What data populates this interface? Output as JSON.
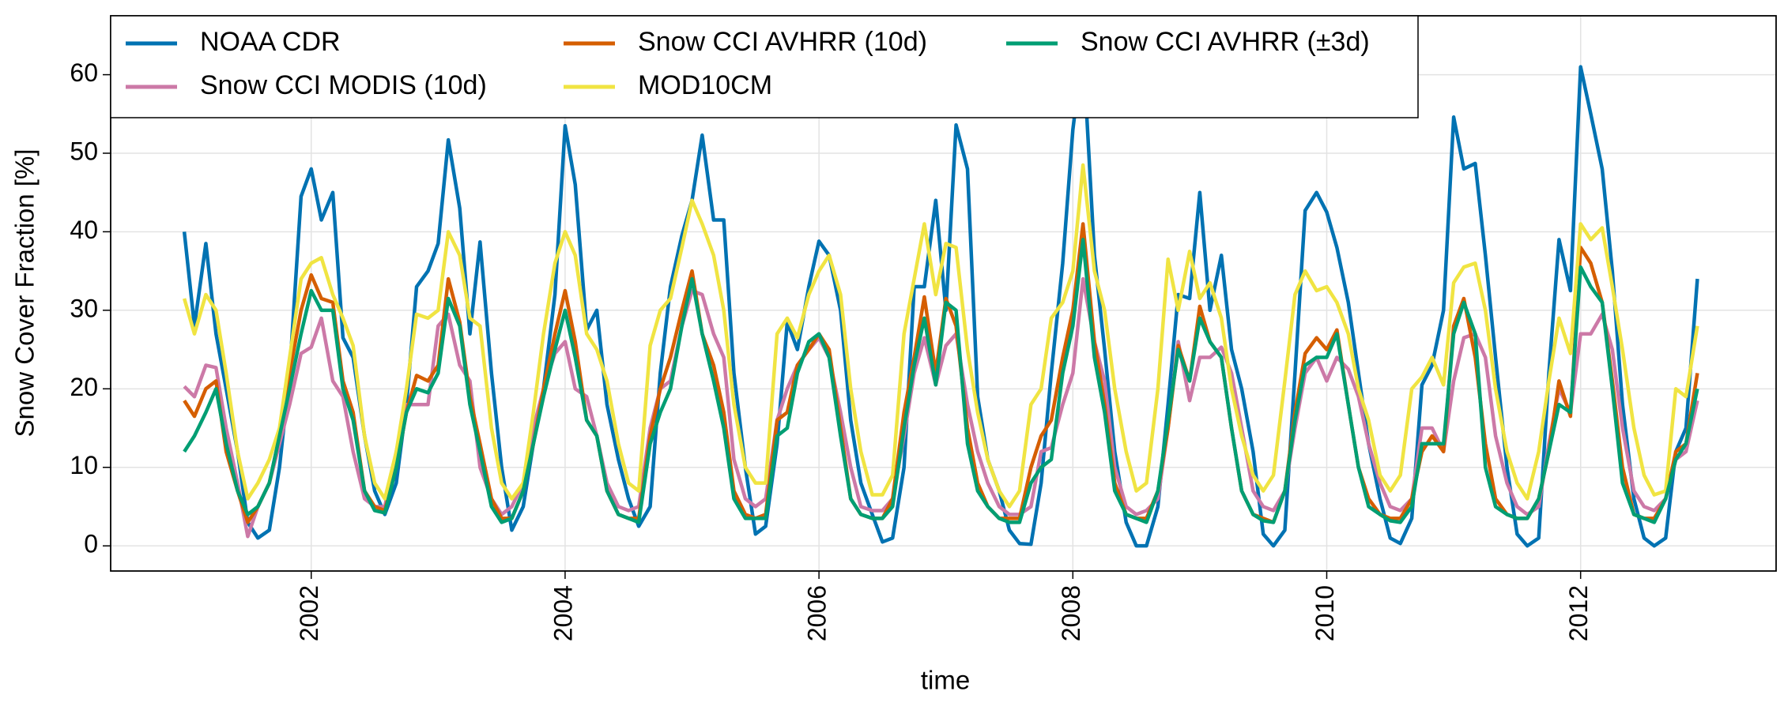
{
  "chart_data": {
    "type": "line",
    "xlabel": "time",
    "ylabel": "Snow Cover Fraction [%]",
    "x": [
      2001.0,
      2001.08,
      2001.17,
      2001.25,
      2001.33,
      2001.42,
      2001.5,
      2001.58,
      2001.67,
      2001.75,
      2001.83,
      2001.92,
      2002.0,
      2002.08,
      2002.17,
      2002.25,
      2002.33,
      2002.42,
      2002.5,
      2002.58,
      2002.67,
      2002.75,
      2002.83,
      2002.92,
      2003.0,
      2003.08,
      2003.17,
      2003.25,
      2003.33,
      2003.42,
      2003.5,
      2003.58,
      2003.67,
      2003.75,
      2003.83,
      2003.92,
      2004.0,
      2004.08,
      2004.17,
      2004.25,
      2004.33,
      2004.42,
      2004.5,
      2004.58,
      2004.67,
      2004.75,
      2004.83,
      2004.92,
      2005.0,
      2005.08,
      2005.17,
      2005.25,
      2005.33,
      2005.42,
      2005.5,
      2005.58,
      2005.67,
      2005.75,
      2005.83,
      2005.92,
      2006.0,
      2006.08,
      2006.17,
      2006.25,
      2006.33,
      2006.42,
      2006.5,
      2006.58,
      2006.67,
      2006.75,
      2006.83,
      2006.92,
      2007.0,
      2007.08,
      2007.17,
      2007.25,
      2007.33,
      2007.42,
      2007.5,
      2007.58,
      2007.67,
      2007.75,
      2007.83,
      2007.92,
      2008.0,
      2008.08,
      2008.17,
      2008.25,
      2008.33,
      2008.42,
      2008.5,
      2008.58,
      2008.67,
      2008.75,
      2008.83,
      2008.92,
      2009.0,
      2009.08,
      2009.17,
      2009.25,
      2009.33,
      2009.42,
      2009.5,
      2009.58,
      2009.67,
      2009.75,
      2009.83,
      2009.92,
      2010.0,
      2010.08,
      2010.17,
      2010.25,
      2010.33,
      2010.42,
      2010.5,
      2010.58,
      2010.67,
      2010.75,
      2010.83,
      2010.92,
      2011.0,
      2011.08,
      2011.17,
      2011.25,
      2011.33,
      2011.42,
      2011.5,
      2011.58,
      2011.67,
      2011.75,
      2011.83,
      2011.92,
      2012.0,
      2012.08,
      2012.17,
      2012.25,
      2012.33,
      2012.42,
      2012.5,
      2012.58,
      2012.67,
      2012.75,
      2012.83,
      2012.92
    ],
    "series": [
      {
        "name": "NOAA CDR",
        "color": "#0072b2",
        "values": [
          40,
          28,
          38.5,
          27,
          20,
          12,
          3,
          1,
          2,
          10,
          22,
          44.5,
          48,
          41.5,
          45,
          26.5,
          24,
          14,
          7,
          4,
          8,
          18,
          33,
          35,
          38.5,
          51.7,
          43,
          27,
          38.7,
          22,
          10,
          2,
          5,
          13,
          20,
          32,
          53.5,
          46,
          27.5,
          30,
          18,
          11,
          6,
          2.5,
          5,
          22,
          33,
          39.5,
          44,
          52.3,
          41.5,
          41.5,
          22,
          10,
          1.5,
          2.5,
          13,
          28.5,
          25,
          33,
          38.8,
          37,
          30,
          16,
          8,
          4,
          0.5,
          1,
          10,
          33,
          33,
          44,
          30,
          53.6,
          48,
          19,
          11,
          7,
          2,
          0.3,
          0.2,
          8,
          22,
          36,
          53,
          63.5,
          37,
          25,
          12,
          3,
          0,
          0,
          5,
          18,
          32,
          31.5,
          45,
          30,
          37,
          25,
          20,
          12,
          1.5,
          0,
          2,
          22,
          42.7,
          45,
          42.5,
          38,
          31,
          22,
          13,
          6,
          1,
          0.3,
          3.5,
          20.5,
          23,
          30,
          54.6,
          48,
          48.7,
          37,
          24,
          10,
          1.5,
          0,
          1,
          22,
          39,
          32.5,
          61,
          55,
          48,
          35,
          18,
          6,
          1,
          0,
          1,
          12,
          15,
          34
        ]
      },
      {
        "name": "Snow CCI MODIS (10d)",
        "color": "#cc79a7",
        "values": [
          20.3,
          19,
          23,
          22.7,
          15,
          8,
          1.2,
          5,
          8,
          13,
          18,
          24.5,
          25.3,
          29,
          21,
          19,
          12,
          6,
          5,
          5,
          12,
          18,
          18,
          18,
          28,
          29.5,
          23,
          21,
          10,
          6,
          4,
          5,
          8,
          15,
          20,
          24.5,
          26,
          20,
          19,
          14,
          8,
          5,
          4.5,
          5,
          15,
          20,
          21,
          28,
          32.5,
          32,
          27,
          24,
          11,
          6,
          5,
          6,
          16,
          20,
          23,
          25,
          26.5,
          24,
          17,
          10,
          5,
          4.5,
          4.5,
          6,
          14,
          22,
          26.5,
          20.5,
          25.5,
          27,
          18,
          12,
          8,
          5,
          4,
          4,
          5,
          12,
          12.5,
          18,
          22,
          34,
          26,
          21,
          10,
          5,
          4,
          4.5,
          6,
          15,
          26,
          18.5,
          24,
          24,
          25.3,
          22,
          15,
          7,
          5,
          4.5,
          7,
          15,
          22,
          24,
          21,
          24,
          22.5,
          19,
          13,
          8,
          5,
          4.5,
          6,
          15,
          15,
          12,
          21,
          26.5,
          27,
          24,
          14,
          8,
          5,
          4,
          5,
          13,
          20,
          17,
          27,
          27,
          29.5,
          25,
          15,
          7,
          5,
          4.5,
          6,
          11,
          12,
          18.5
        ]
      },
      {
        "name": "Snow CCI AVHRR (10d)",
        "color": "#d55e00",
        "values": [
          18.5,
          16.5,
          20,
          21,
          12,
          7,
          3,
          5,
          8,
          14,
          22,
          30,
          34.5,
          31.5,
          31,
          21,
          17,
          7,
          5,
          4.5,
          10,
          17,
          21.7,
          21,
          23,
          34,
          28.5,
          19,
          13,
          6,
          3.5,
          3.5,
          7,
          13,
          20,
          27,
          32.5,
          26,
          16,
          14,
          7,
          4,
          3.5,
          3.5,
          14,
          20,
          24,
          30,
          35,
          27,
          23,
          17,
          7,
          4,
          3.5,
          4,
          16,
          17,
          23,
          25,
          27,
          25,
          15,
          6,
          4,
          3.5,
          3.5,
          6,
          17,
          24,
          31.7,
          22,
          31.5,
          28,
          15,
          8,
          5,
          3.5,
          3.5,
          3.5,
          10,
          14,
          16,
          24,
          30,
          41,
          26,
          18,
          8,
          4,
          3.5,
          3.5,
          7,
          15,
          25.5,
          21,
          30.5,
          26,
          24,
          15,
          7,
          4,
          3.5,
          3,
          7,
          17,
          24.5,
          26.5,
          25,
          27.5,
          18,
          10,
          6,
          4,
          3.5,
          3.5,
          6,
          12,
          14,
          12,
          28,
          31.5,
          24,
          13,
          6,
          4,
          3.5,
          3.5,
          6,
          12,
          21,
          16.5,
          38,
          36,
          31,
          21,
          10,
          4,
          3.5,
          3.5,
          6,
          12,
          13,
          22
        ]
      },
      {
        "name": "MOD10CM",
        "color": "#f0e442",
        "values": [
          31.5,
          27,
          32,
          30,
          22,
          12,
          6,
          8,
          11,
          15,
          24,
          34,
          36,
          36.7,
          32,
          29,
          25.5,
          14,
          8,
          6,
          12,
          20,
          29.5,
          29,
          30,
          40,
          37,
          29,
          28,
          15,
          8,
          6,
          8,
          17,
          27,
          36,
          40,
          37,
          27,
          25,
          21,
          13,
          8,
          7,
          25.5,
          30,
          31.5,
          38,
          44,
          41,
          37,
          30,
          18,
          10,
          8,
          8,
          27,
          29,
          26.5,
          32,
          35,
          37,
          32,
          20,
          12,
          6.5,
          6.5,
          9,
          27,
          34,
          41,
          32,
          38.5,
          38,
          25,
          17,
          11,
          7,
          5,
          7,
          18,
          20,
          29,
          31,
          35,
          48.5,
          35,
          30,
          20,
          12,
          7,
          8,
          20,
          36.5,
          30,
          37.5,
          31.5,
          33.5,
          29,
          20,
          14,
          9,
          7,
          9,
          21,
          32,
          35,
          32.5,
          33,
          31,
          27,
          20,
          16,
          9,
          7,
          9,
          20,
          21.5,
          24,
          20.5,
          33.5,
          35.5,
          36,
          30,
          20,
          12,
          8,
          6,
          12,
          21,
          29,
          24.5,
          41,
          39,
          40.5,
          33,
          25,
          15,
          9,
          6.5,
          7,
          20,
          19,
          28
        ]
      },
      {
        "name": "Snow CCI AVHRR (±3d)",
        "color": "#009e73",
        "values": [
          12,
          14,
          17,
          20,
          13,
          7,
          4,
          5,
          8,
          14,
          20,
          27,
          32.5,
          30,
          30,
          20,
          16,
          7,
          4.5,
          4.2,
          10,
          17,
          20,
          19.5,
          22,
          31.5,
          28,
          18,
          12,
          5,
          3,
          3.5,
          7,
          13,
          19,
          25,
          30,
          24,
          16,
          14,
          7,
          4,
          3.5,
          3,
          13,
          17,
          20,
          28,
          34,
          27,
          21,
          15,
          6,
          3.5,
          3.5,
          3.5,
          14,
          15,
          22,
          26,
          27,
          24,
          14,
          6,
          4,
          3.5,
          3.5,
          5,
          15,
          23,
          29,
          20.5,
          31,
          30,
          13,
          7,
          5,
          3.5,
          3,
          3,
          8,
          10,
          11,
          22,
          28,
          39,
          24,
          17,
          7,
          4,
          3.5,
          3,
          7,
          16,
          25,
          21,
          29,
          26,
          24,
          15,
          7,
          4,
          3.2,
          3,
          7,
          16,
          23,
          24,
          24,
          27,
          18,
          10,
          5,
          4,
          3.2,
          3,
          5,
          13,
          13,
          13,
          27,
          31,
          27,
          10,
          5,
          4,
          3.5,
          3.5,
          6,
          12,
          18,
          17,
          35.5,
          33,
          31,
          20,
          8,
          4,
          3.5,
          3,
          6,
          11,
          13,
          20
        ]
      }
    ],
    "xlim": [
      2000.42,
      2013.54
    ],
    "xticks": [
      2002,
      2004,
      2006,
      2008,
      2010,
      2012
    ],
    "ylim": [
      -3.2,
      67.5
    ],
    "yticks": [
      0,
      10,
      20,
      30,
      40,
      50,
      60
    ],
    "grid": true,
    "legend": "upper left"
  }
}
